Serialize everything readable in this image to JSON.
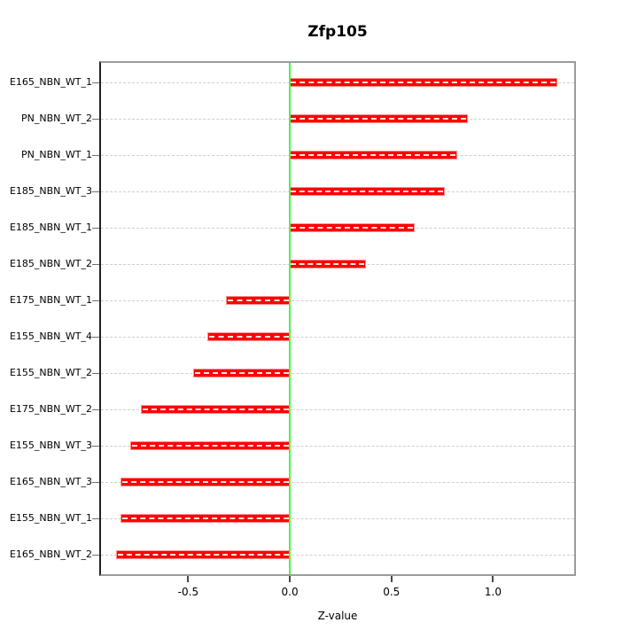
{
  "title": "Zfp105",
  "xlabel": "Z-value",
  "chart_data": {
    "type": "bar",
    "orientation": "horizontal",
    "title": "Zfp105",
    "xlabel": "Z-value",
    "ylabel": "",
    "categories": [
      "E165_NBN_WT_1",
      "PN_NBN_WT_2",
      "PN_NBN_WT_1",
      "E185_NBN_WT_3",
      "E185_NBN_WT_1",
      "E185_NBN_WT_2",
      "E175_NBN_WT_1",
      "E155_NBN_WT_4",
      "E155_NBN_WT_2",
      "E175_NBN_WT_2",
      "E155_NBN_WT_3",
      "E165_NBN_WT_3",
      "E155_NBN_WT_1",
      "E165_NBN_WT_2"
    ],
    "values": [
      1.31,
      0.87,
      0.82,
      0.76,
      0.61,
      0.37,
      -0.31,
      -0.4,
      -0.47,
      -0.73,
      -0.78,
      -0.83,
      -0.83,
      -0.85
    ],
    "xlim": [
      -0.929,
      1.399
    ],
    "xticks": [
      -0.5,
      0.0,
      0.5,
      1.0
    ],
    "xtick_labels": [
      "-0.5",
      "0.0",
      "0.5",
      "1.0"
    ],
    "zero_line": 0.0,
    "grid": "horizontal dashed line per category",
    "legend_position": "none"
  },
  "colors": {
    "bar": "#ff0000",
    "bar_edge": "#ff8f8f",
    "bar_center_dash": "#ffffff",
    "zero_line": "#49f549",
    "gridline": "#cfcfcf",
    "box_border": "#9c9c9c",
    "axis_left": "#222222",
    "text": "#000000",
    "background": "#ffffff"
  }
}
